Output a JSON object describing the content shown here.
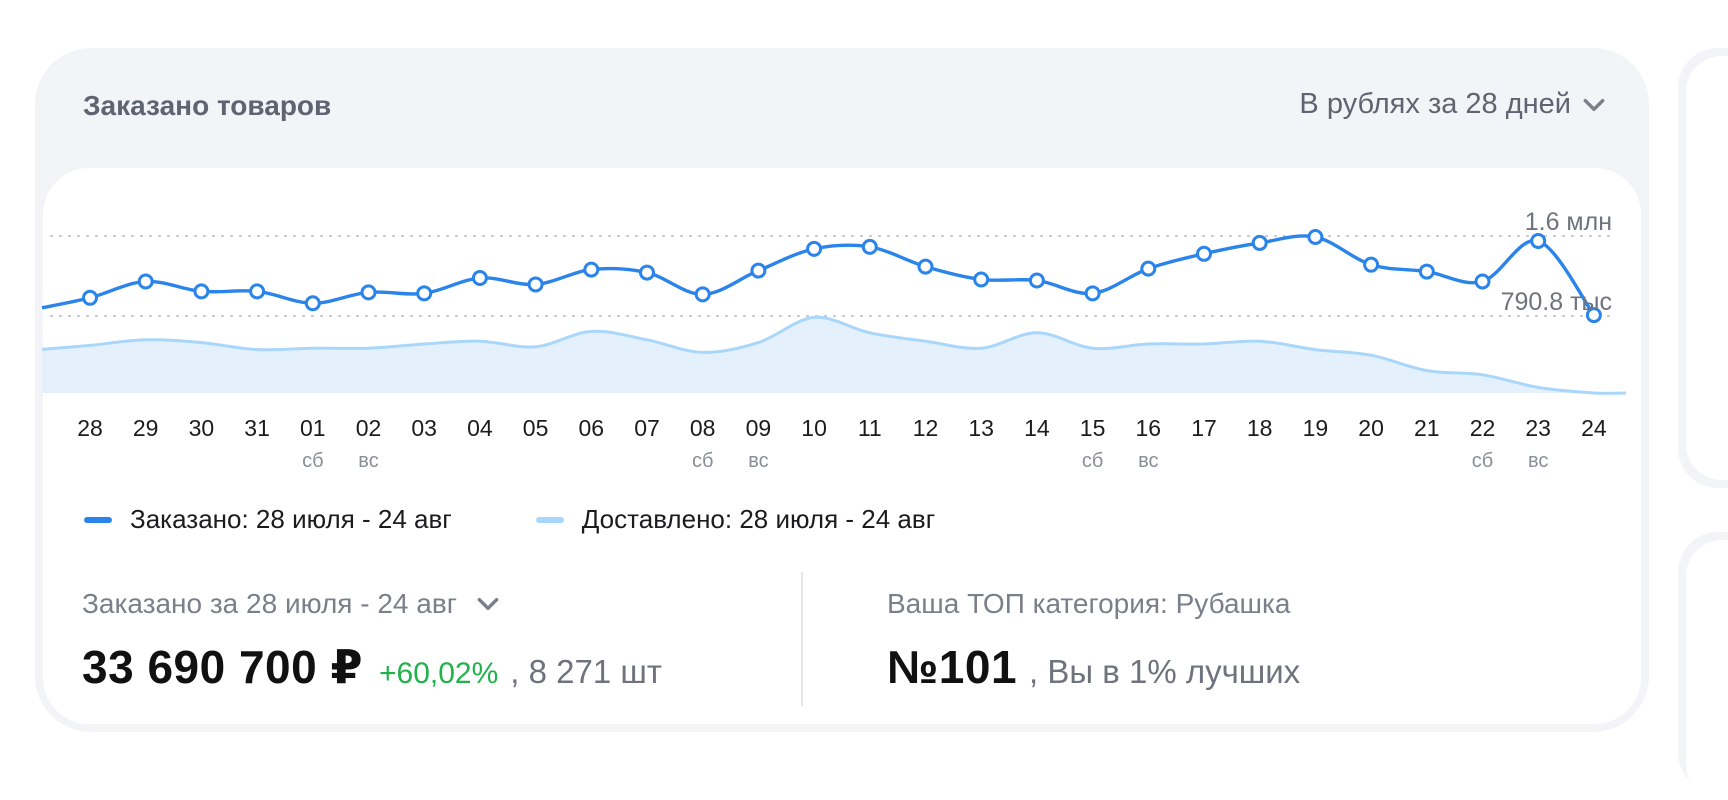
{
  "header": {
    "title": "Заказано товаров",
    "period_select": "В рублях за 28 дней"
  },
  "legend": {
    "ordered": "Заказано: 28 июля - 24 авг",
    "delivered": "Доставлено: 28 июля - 24 авг"
  },
  "colors": {
    "ordered": "#2a84ea",
    "delivered": "#a9d6fb",
    "delivered_fill": "#e4f1fd",
    "positive": "#22b24c"
  },
  "stats": {
    "ordered_label": "Заказано за 28 июля - 24 авг",
    "ordered_value": "33 690 700 ₽",
    "ordered_delta": "+60,02%",
    "ordered_units": ", 8 271 шт",
    "top_label": "Ваша ТОП категория: Рубашка",
    "top_value": "№101",
    "top_suffix": ", Вы в 1% лучших"
  },
  "chart_data": {
    "type": "line",
    "x": [
      "28",
      "29",
      "30",
      "31",
      "01",
      "02",
      "03",
      "04",
      "05",
      "06",
      "07",
      "08",
      "09",
      "10",
      "11",
      "12",
      "13",
      "14",
      "15",
      "16",
      "17",
      "18",
      "19",
      "20",
      "21",
      "22",
      "23",
      "24"
    ],
    "weekday": [
      "",
      "",
      "",
      "",
      "сб",
      "вс",
      "",
      "",
      "",
      "",
      "",
      "сб",
      "вс",
      "",
      "",
      "",
      "",
      "",
      "сб",
      "вс",
      "",
      "",
      "",
      "",
      "",
      "сб",
      "вс",
      ""
    ],
    "reference_lines": [
      {
        "label": "1.6 млн",
        "value": 1600000
      },
      {
        "label": "790.8 тыс",
        "value": 790800
      }
    ],
    "ylim": [
      0,
      1800000
    ],
    "series": [
      {
        "name": "Заказано: 28 июля - 24 авг",
        "values": [
          975000,
          1140000,
          1040000,
          1040000,
          920000,
          1030000,
          1020000,
          1175000,
          1110000,
          1260000,
          1230000,
          1010000,
          1250000,
          1470000,
          1490000,
          1290000,
          1160000,
          1150000,
          1020000,
          1270000,
          1420000,
          1530000,
          1590000,
          1310000,
          1240000,
          1140000,
          1550000,
          800000
        ]
      },
      {
        "name": "Доставлено: 28 июля - 24 авг",
        "values": [
          340000,
          380000,
          360000,
          310000,
          320000,
          320000,
          350000,
          370000,
          330000,
          440000,
          380000,
          290000,
          360000,
          540000,
          430000,
          370000,
          320000,
          430000,
          320000,
          350000,
          350000,
          370000,
          310000,
          270000,
          160000,
          130000,
          40000,
          0
        ]
      }
    ],
    "grid": false,
    "legend_position": "bottom-left"
  }
}
